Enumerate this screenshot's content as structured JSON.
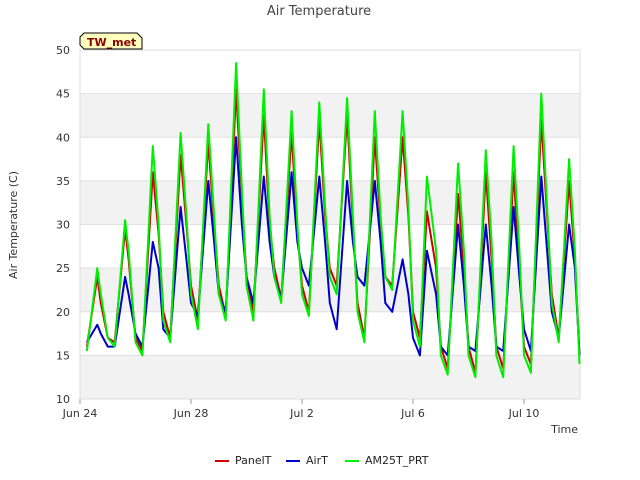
{
  "chart_data": {
    "type": "line",
    "title": "Air Temperature",
    "xlabel": "Time",
    "ylabel": "Air Temperature (C)",
    "badge": "TW_met",
    "xlim": [
      "2024-06-24",
      "2024-07-12"
    ],
    "ylim": [
      10,
      50
    ],
    "y_ticks": [
      10,
      15,
      20,
      25,
      30,
      35,
      40,
      45,
      50
    ],
    "x_ticks": [
      {
        "date": "2024-06-24",
        "label": "Jun 24"
      },
      {
        "date": "2024-06-28",
        "label": "Jun 28"
      },
      {
        "date": "2024-07-02",
        "label": "Jul 2"
      },
      {
        "date": "2024-07-06",
        "label": "Jul 6"
      },
      {
        "date": "2024-07-10",
        "label": "Jul 10"
      }
    ],
    "grid": true,
    "banded_background": true,
    "legend_position": "bottom-center",
    "series": [
      {
        "name": "PanelT",
        "color": "#cc0000",
        "points": [
          [
            "2024-06-24 06:00",
            16.0
          ],
          [
            "2024-06-24 15:00",
            24.0
          ],
          [
            "2024-06-24 18:00",
            21.0
          ],
          [
            "2024-06-25 00:00",
            17.0
          ],
          [
            "2024-06-25 06:00",
            16.5
          ],
          [
            "2024-06-25 15:00",
            29.5
          ],
          [
            "2024-06-25 18:00",
            26.0
          ],
          [
            "2024-06-26 00:00",
            17.0
          ],
          [
            "2024-06-26 06:00",
            15.5
          ],
          [
            "2024-06-26 15:00",
            36.0
          ],
          [
            "2024-06-26 20:00",
            29.0
          ],
          [
            "2024-06-27 00:00",
            20.0
          ],
          [
            "2024-06-27 06:00",
            17.0
          ],
          [
            "2024-06-27 15:00",
            38.0
          ],
          [
            "2024-06-27 20:00",
            30.0
          ],
          [
            "2024-06-28 00:00",
            23.0
          ],
          [
            "2024-06-28 06:00",
            19.0
          ],
          [
            "2024-06-28 15:00",
            39.5
          ],
          [
            "2024-06-28 20:00",
            30.0
          ],
          [
            "2024-06-29 00:00",
            23.0
          ],
          [
            "2024-06-29 06:00",
            19.5
          ],
          [
            "2024-06-29 15:00",
            45.5
          ],
          [
            "2024-06-29 20:00",
            33.0
          ],
          [
            "2024-06-30 00:00",
            24.0
          ],
          [
            "2024-06-30 06:00",
            20.0
          ],
          [
            "2024-06-30 15:00",
            42.5
          ],
          [
            "2024-06-30 20:00",
            30.0
          ],
          [
            "2024-07-01 00:00",
            25.0
          ],
          [
            "2024-07-01 06:00",
            21.5
          ],
          [
            "2024-07-01 15:00",
            40.5
          ],
          [
            "2024-07-01 20:00",
            29.0
          ],
          [
            "2024-07-02 00:00",
            23.0
          ],
          [
            "2024-07-02 06:00",
            20.0
          ],
          [
            "2024-07-02 15:00",
            42.0
          ],
          [
            "2024-07-02 20:00",
            31.0
          ],
          [
            "2024-07-03 00:00",
            25.0
          ],
          [
            "2024-07-03 06:00",
            23.0
          ],
          [
            "2024-07-03 15:00",
            42.5
          ],
          [
            "2024-07-03 20:00",
            30.0
          ],
          [
            "2024-07-04 00:00",
            21.0
          ],
          [
            "2024-07-04 06:00",
            17.0
          ],
          [
            "2024-07-04 15:00",
            40.0
          ],
          [
            "2024-07-04 20:00",
            30.0
          ],
          [
            "2024-07-05 00:00",
            24.0
          ],
          [
            "2024-07-05 06:00",
            23.0
          ],
          [
            "2024-07-05 15:00",
            40.0
          ],
          [
            "2024-07-05 20:00",
            31.0
          ],
          [
            "2024-07-06 00:00",
            20.0
          ],
          [
            "2024-07-06 06:00",
            17.0
          ],
          [
            "2024-07-06 12:00",
            31.5
          ],
          [
            "2024-07-06 20:00",
            25.0
          ],
          [
            "2024-07-07 00:00",
            16.0
          ],
          [
            "2024-07-07 06:00",
            13.5
          ],
          [
            "2024-07-07 15:00",
            33.5
          ],
          [
            "2024-07-07 20:00",
            25.0
          ],
          [
            "2024-07-08 00:00",
            16.0
          ],
          [
            "2024-07-08 06:00",
            13.0
          ],
          [
            "2024-07-08 15:00",
            36.0
          ],
          [
            "2024-07-08 20:00",
            26.0
          ],
          [
            "2024-07-09 00:00",
            16.0
          ],
          [
            "2024-07-09 06:00",
            13.5
          ],
          [
            "2024-07-09 15:00",
            36.0
          ],
          [
            "2024-07-09 20:00",
            25.0
          ],
          [
            "2024-07-10 00:00",
            16.0
          ],
          [
            "2024-07-10 06:00",
            14.0
          ],
          [
            "2024-07-10 15:00",
            42.0
          ],
          [
            "2024-07-10 20:00",
            31.0
          ],
          [
            "2024-07-11 00:00",
            22.0
          ],
          [
            "2024-07-11 06:00",
            17.0
          ],
          [
            "2024-07-11 15:00",
            35.0
          ],
          [
            "2024-07-11 20:00",
            26.0
          ],
          [
            "2024-07-12 00:00",
            15.0
          ]
        ]
      },
      {
        "name": "AirT",
        "color": "#0000cc",
        "points": [
          [
            "2024-06-24 06:00",
            16.5
          ],
          [
            "2024-06-24 15:00",
            18.5
          ],
          [
            "2024-06-24 18:00",
            17.5
          ],
          [
            "2024-06-25 00:00",
            16.0
          ],
          [
            "2024-06-25 06:00",
            16.0
          ],
          [
            "2024-06-25 15:00",
            24.0
          ],
          [
            "2024-06-25 18:00",
            22.0
          ],
          [
            "2024-06-26 00:00",
            17.5
          ],
          [
            "2024-06-26 06:00",
            16.0
          ],
          [
            "2024-06-26 15:00",
            28.0
          ],
          [
            "2024-06-26 20:00",
            25.0
          ],
          [
            "2024-06-27 00:00",
            18.0
          ],
          [
            "2024-06-27 06:00",
            17.0
          ],
          [
            "2024-06-27 15:00",
            32.0
          ],
          [
            "2024-06-27 20:00",
            26.0
          ],
          [
            "2024-06-28 00:00",
            21.0
          ],
          [
            "2024-06-28 06:00",
            19.5
          ],
          [
            "2024-06-28 15:00",
            35.0
          ],
          [
            "2024-06-28 20:00",
            28.0
          ],
          [
            "2024-06-29 00:00",
            22.0
          ],
          [
            "2024-06-29 06:00",
            20.0
          ],
          [
            "2024-06-29 15:00",
            40.0
          ],
          [
            "2024-06-29 20:00",
            30.0
          ],
          [
            "2024-06-30 00:00",
            24.0
          ],
          [
            "2024-06-30 06:00",
            21.0
          ],
          [
            "2024-06-30 15:00",
            35.5
          ],
          [
            "2024-06-30 20:00",
            28.0
          ],
          [
            "2024-07-01 00:00",
            24.0
          ],
          [
            "2024-07-01 06:00",
            21.5
          ],
          [
            "2024-07-01 15:00",
            36.0
          ],
          [
            "2024-07-01 20:00",
            28.0
          ],
          [
            "2024-07-02 00:00",
            25.0
          ],
          [
            "2024-07-02 06:00",
            23.0
          ],
          [
            "2024-07-02 15:00",
            35.5
          ],
          [
            "2024-07-02 20:00",
            28.0
          ],
          [
            "2024-07-03 00:00",
            21.0
          ],
          [
            "2024-07-03 06:00",
            18.0
          ],
          [
            "2024-07-03 15:00",
            35.0
          ],
          [
            "2024-07-03 20:00",
            28.0
          ],
          [
            "2024-07-04 00:00",
            24.0
          ],
          [
            "2024-07-04 06:00",
            23.0
          ],
          [
            "2024-07-04 15:00",
            35.0
          ],
          [
            "2024-07-04 20:00",
            28.0
          ],
          [
            "2024-07-05 00:00",
            21.0
          ],
          [
            "2024-07-05 06:00",
            20.0
          ],
          [
            "2024-07-05 15:00",
            26.0
          ],
          [
            "2024-07-05 20:00",
            22.0
          ],
          [
            "2024-07-06 00:00",
            17.0
          ],
          [
            "2024-07-06 06:00",
            15.0
          ],
          [
            "2024-07-06 12:00",
            27.0
          ],
          [
            "2024-07-06 20:00",
            22.0
          ],
          [
            "2024-07-07 00:00",
            16.0
          ],
          [
            "2024-07-07 06:00",
            15.0
          ],
          [
            "2024-07-07 15:00",
            30.0
          ],
          [
            "2024-07-07 20:00",
            23.0
          ],
          [
            "2024-07-08 00:00",
            16.0
          ],
          [
            "2024-07-08 06:00",
            15.5
          ],
          [
            "2024-07-08 15:00",
            30.0
          ],
          [
            "2024-07-08 20:00",
            23.0
          ],
          [
            "2024-07-09 00:00",
            16.0
          ],
          [
            "2024-07-09 06:00",
            15.5
          ],
          [
            "2024-07-09 15:00",
            32.0
          ],
          [
            "2024-07-09 20:00",
            24.0
          ],
          [
            "2024-07-10 00:00",
            18.0
          ],
          [
            "2024-07-10 06:00",
            15.5
          ],
          [
            "2024-07-10 15:00",
            35.5
          ],
          [
            "2024-07-10 20:00",
            27.0
          ],
          [
            "2024-07-11 00:00",
            20.0
          ],
          [
            "2024-07-11 06:00",
            17.0
          ],
          [
            "2024-07-11 15:00",
            30.0
          ],
          [
            "2024-07-11 20:00",
            25.0
          ],
          [
            "2024-07-12 00:00",
            15.0
          ]
        ]
      },
      {
        "name": "AM25T_PRT",
        "color": "#00ee00",
        "points": [
          [
            "2024-06-24 06:00",
            15.5
          ],
          [
            "2024-06-24 15:00",
            25.0
          ],
          [
            "2024-06-24 18:00",
            22.0
          ],
          [
            "2024-06-25 00:00",
            17.0
          ],
          [
            "2024-06-25 06:00",
            16.0
          ],
          [
            "2024-06-25 15:00",
            30.5
          ],
          [
            "2024-06-25 18:00",
            27.0
          ],
          [
            "2024-06-26 00:00",
            16.5
          ],
          [
            "2024-06-26 06:00",
            15.0
          ],
          [
            "2024-06-26 15:00",
            39.0
          ],
          [
            "2024-06-26 20:00",
            30.0
          ],
          [
            "2024-06-27 00:00",
            19.0
          ],
          [
            "2024-06-27 06:00",
            16.5
          ],
          [
            "2024-06-27 15:00",
            40.5
          ],
          [
            "2024-06-27 20:00",
            31.0
          ],
          [
            "2024-06-28 00:00",
            22.0
          ],
          [
            "2024-06-28 06:00",
            18.0
          ],
          [
            "2024-06-28 15:00",
            41.5
          ],
          [
            "2024-06-28 20:00",
            31.0
          ],
          [
            "2024-06-29 00:00",
            22.0
          ],
          [
            "2024-06-29 06:00",
            19.0
          ],
          [
            "2024-06-29 15:00",
            48.5
          ],
          [
            "2024-06-29 20:00",
            34.0
          ],
          [
            "2024-06-30 00:00",
            23.0
          ],
          [
            "2024-06-30 06:00",
            19.0
          ],
          [
            "2024-06-30 15:00",
            45.5
          ],
          [
            "2024-06-30 20:00",
            31.0
          ],
          [
            "2024-07-01 00:00",
            24.0
          ],
          [
            "2024-07-01 06:00",
            21.0
          ],
          [
            "2024-07-01 15:00",
            43.0
          ],
          [
            "2024-07-01 20:00",
            30.0
          ],
          [
            "2024-07-02 00:00",
            22.0
          ],
          [
            "2024-07-02 06:00",
            19.5
          ],
          [
            "2024-07-02 15:00",
            44.0
          ],
          [
            "2024-07-02 20:00",
            32.0
          ],
          [
            "2024-07-03 00:00",
            24.0
          ],
          [
            "2024-07-03 06:00",
            22.0
          ],
          [
            "2024-07-03 15:00",
            44.5
          ],
          [
            "2024-07-03 20:00",
            31.0
          ],
          [
            "2024-07-04 00:00",
            20.0
          ],
          [
            "2024-07-04 06:00",
            16.5
          ],
          [
            "2024-07-04 15:00",
            43.0
          ],
          [
            "2024-07-04 20:00",
            31.0
          ],
          [
            "2024-07-05 00:00",
            24.0
          ],
          [
            "2024-07-05 06:00",
            22.5
          ],
          [
            "2024-07-05 15:00",
            43.0
          ],
          [
            "2024-07-05 20:00",
            32.0
          ],
          [
            "2024-07-06 00:00",
            19.0
          ],
          [
            "2024-07-06 06:00",
            16.0
          ],
          [
            "2024-07-06 12:00",
            35.5
          ],
          [
            "2024-07-06 20:00",
            27.0
          ],
          [
            "2024-07-07 00:00",
            15.0
          ],
          [
            "2024-07-07 06:00",
            12.8
          ],
          [
            "2024-07-07 15:00",
            37.0
          ],
          [
            "2024-07-07 20:00",
            27.0
          ],
          [
            "2024-07-08 00:00",
            15.0
          ],
          [
            "2024-07-08 06:00",
            12.5
          ],
          [
            "2024-07-08 15:00",
            38.5
          ],
          [
            "2024-07-08 20:00",
            28.0
          ],
          [
            "2024-07-09 00:00",
            15.0
          ],
          [
            "2024-07-09 06:00",
            12.5
          ],
          [
            "2024-07-09 15:00",
            39.0
          ],
          [
            "2024-07-09 20:00",
            27.0
          ],
          [
            "2024-07-10 00:00",
            15.0
          ],
          [
            "2024-07-10 06:00",
            13.0
          ],
          [
            "2024-07-10 15:00",
            45.0
          ],
          [
            "2024-07-10 20:00",
            32.0
          ],
          [
            "2024-07-11 00:00",
            21.0
          ],
          [
            "2024-07-11 06:00",
            16.5
          ],
          [
            "2024-07-11 15:00",
            37.5
          ],
          [
            "2024-07-11 20:00",
            27.0
          ],
          [
            "2024-07-12 00:00",
            14.0
          ]
        ]
      }
    ]
  }
}
